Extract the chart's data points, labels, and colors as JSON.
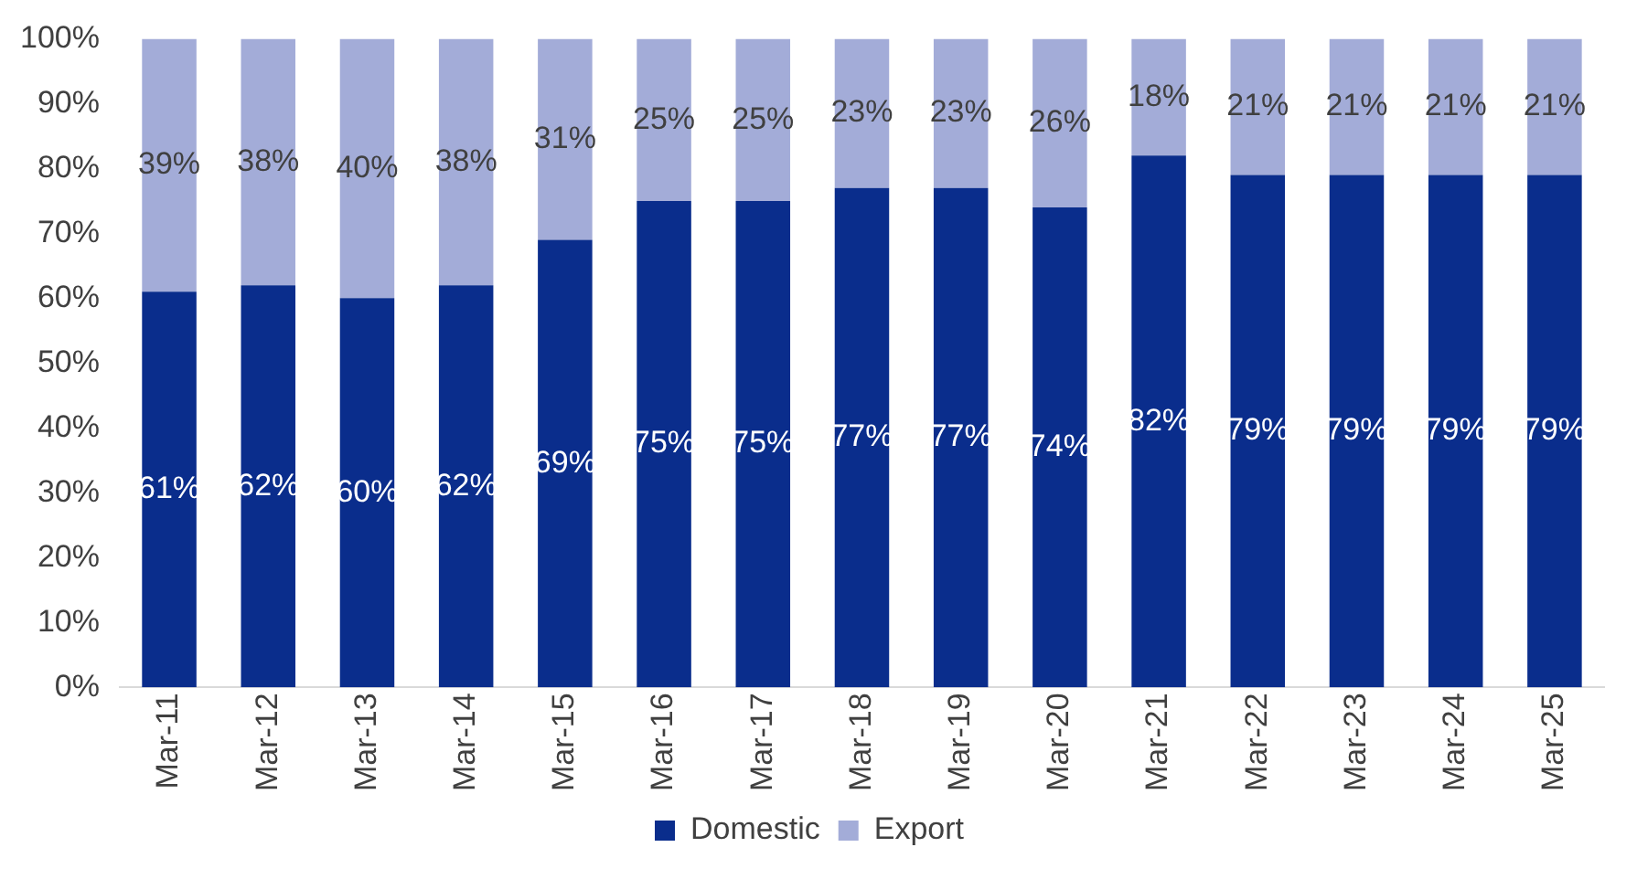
{
  "chart_data": {
    "type": "bar",
    "stacked": true,
    "categories": [
      "Mar-11",
      "Mar-12",
      "Mar-13",
      "Mar-14",
      "Mar-15",
      "Mar-16",
      "Mar-17",
      "Mar-18",
      "Mar-19",
      "Mar-20",
      "Mar-21",
      "Mar-22",
      "Mar-23",
      "Mar-24",
      "Mar-25"
    ],
    "series": [
      {
        "name": "Domestic",
        "color": "#0a2d8c",
        "values": [
          61,
          62,
          60,
          62,
          69,
          75,
          75,
          77,
          77,
          74,
          82,
          79,
          79,
          79,
          79
        ],
        "value_labels": [
          "61%",
          "62%",
          "60%",
          "62%",
          "69%",
          "75%",
          "75%",
          "77%",
          "77%",
          "74%",
          "82%",
          "79%",
          "79%",
          "79%",
          "79%"
        ]
      },
      {
        "name": "Export",
        "color": "#a3acd8",
        "values": [
          39,
          38,
          40,
          38,
          31,
          25,
          25,
          23,
          23,
          26,
          18,
          21,
          21,
          21,
          21
        ],
        "value_labels": [
          "39%",
          "38%",
          "40%",
          "38%",
          "31%",
          "25%",
          "25%",
          "23%",
          "23%",
          "26%",
          "18%",
          "21%",
          "21%",
          "21%",
          "21%"
        ]
      }
    ],
    "ylim": [
      0,
      100
    ],
    "yticks": [
      {
        "value": 0,
        "label": "0%"
      },
      {
        "value": 10,
        "label": "10%"
      },
      {
        "value": 20,
        "label": "20%"
      },
      {
        "value": 30,
        "label": "30%"
      },
      {
        "value": 40,
        "label": "40%"
      },
      {
        "value": 50,
        "label": "50%"
      },
      {
        "value": 60,
        "label": "60%"
      },
      {
        "value": 70,
        "label": "70%"
      },
      {
        "value": 80,
        "label": "80%"
      },
      {
        "value": 90,
        "label": "90%"
      },
      {
        "value": 100,
        "label": "100%"
      }
    ],
    "grid": false,
    "legend": "bottom"
  }
}
